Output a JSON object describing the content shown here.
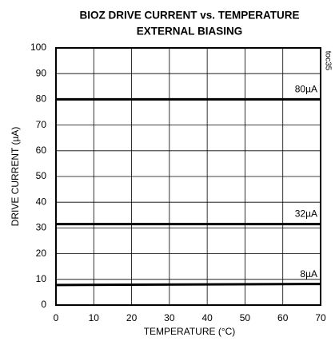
{
  "chart_data": {
    "type": "line",
    "title": "BIOZ DRIVE CURRENT vs. TEMPERATURE",
    "subtitle": "EXTERNAL BIASING",
    "note": "toc35",
    "xlabel": "TEMPERATURE (°C)",
    "ylabel": "DRIVE CURRENT (µA)",
    "x": [
      0,
      70
    ],
    "series": [
      {
        "name": "80µA",
        "color": "#000000",
        "values": [
          80,
          80
        ]
      },
      {
        "name": "32µA",
        "color": "#000000",
        "values": [
          31.5,
          31.5
        ]
      },
      {
        "name": "8µA",
        "color": "#000000",
        "values": [
          7.8,
          8.2
        ]
      }
    ],
    "xlim": [
      0,
      70
    ],
    "xticks": [
      0,
      10,
      20,
      30,
      40,
      50,
      60,
      70
    ],
    "ylim": [
      0,
      100
    ],
    "yticks": [
      0,
      10,
      20,
      30,
      40,
      50,
      60,
      70,
      80,
      90,
      100
    ],
    "grid": true
  }
}
